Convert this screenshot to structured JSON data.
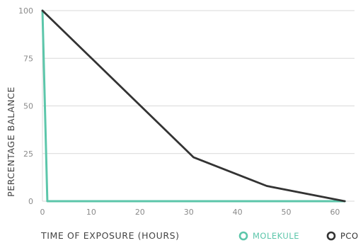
{
  "chart_data": {
    "type": "line",
    "xlabel": "TIME OF EXPOSURE (HOURS)",
    "ylabel": "PERCENTAGE BALANCE",
    "xlim": [
      0,
      64
    ],
    "ylim": [
      0,
      100
    ],
    "x_ticks": [
      "0",
      "10",
      "20",
      "30",
      "40",
      "50",
      "60"
    ],
    "x_tick_values": [
      0,
      10,
      20,
      30,
      40,
      50,
      60
    ],
    "y_ticks": [
      "0",
      "25",
      "50",
      "75",
      "100"
    ],
    "y_tick_values": [
      0,
      25,
      50,
      75,
      100
    ],
    "grid": "horizontal",
    "legend_position": "bottom-right",
    "series": [
      {
        "name": "MOLEKULE",
        "color": "#5cc6aa",
        "points": [
          [
            0,
            100
          ],
          [
            1,
            0
          ],
          [
            62,
            0
          ]
        ]
      },
      {
        "name": "PCO",
        "color": "#333333",
        "points": [
          [
            0,
            100
          ],
          [
            31,
            23
          ],
          [
            46,
            8
          ],
          [
            62,
            0
          ]
        ]
      }
    ]
  }
}
